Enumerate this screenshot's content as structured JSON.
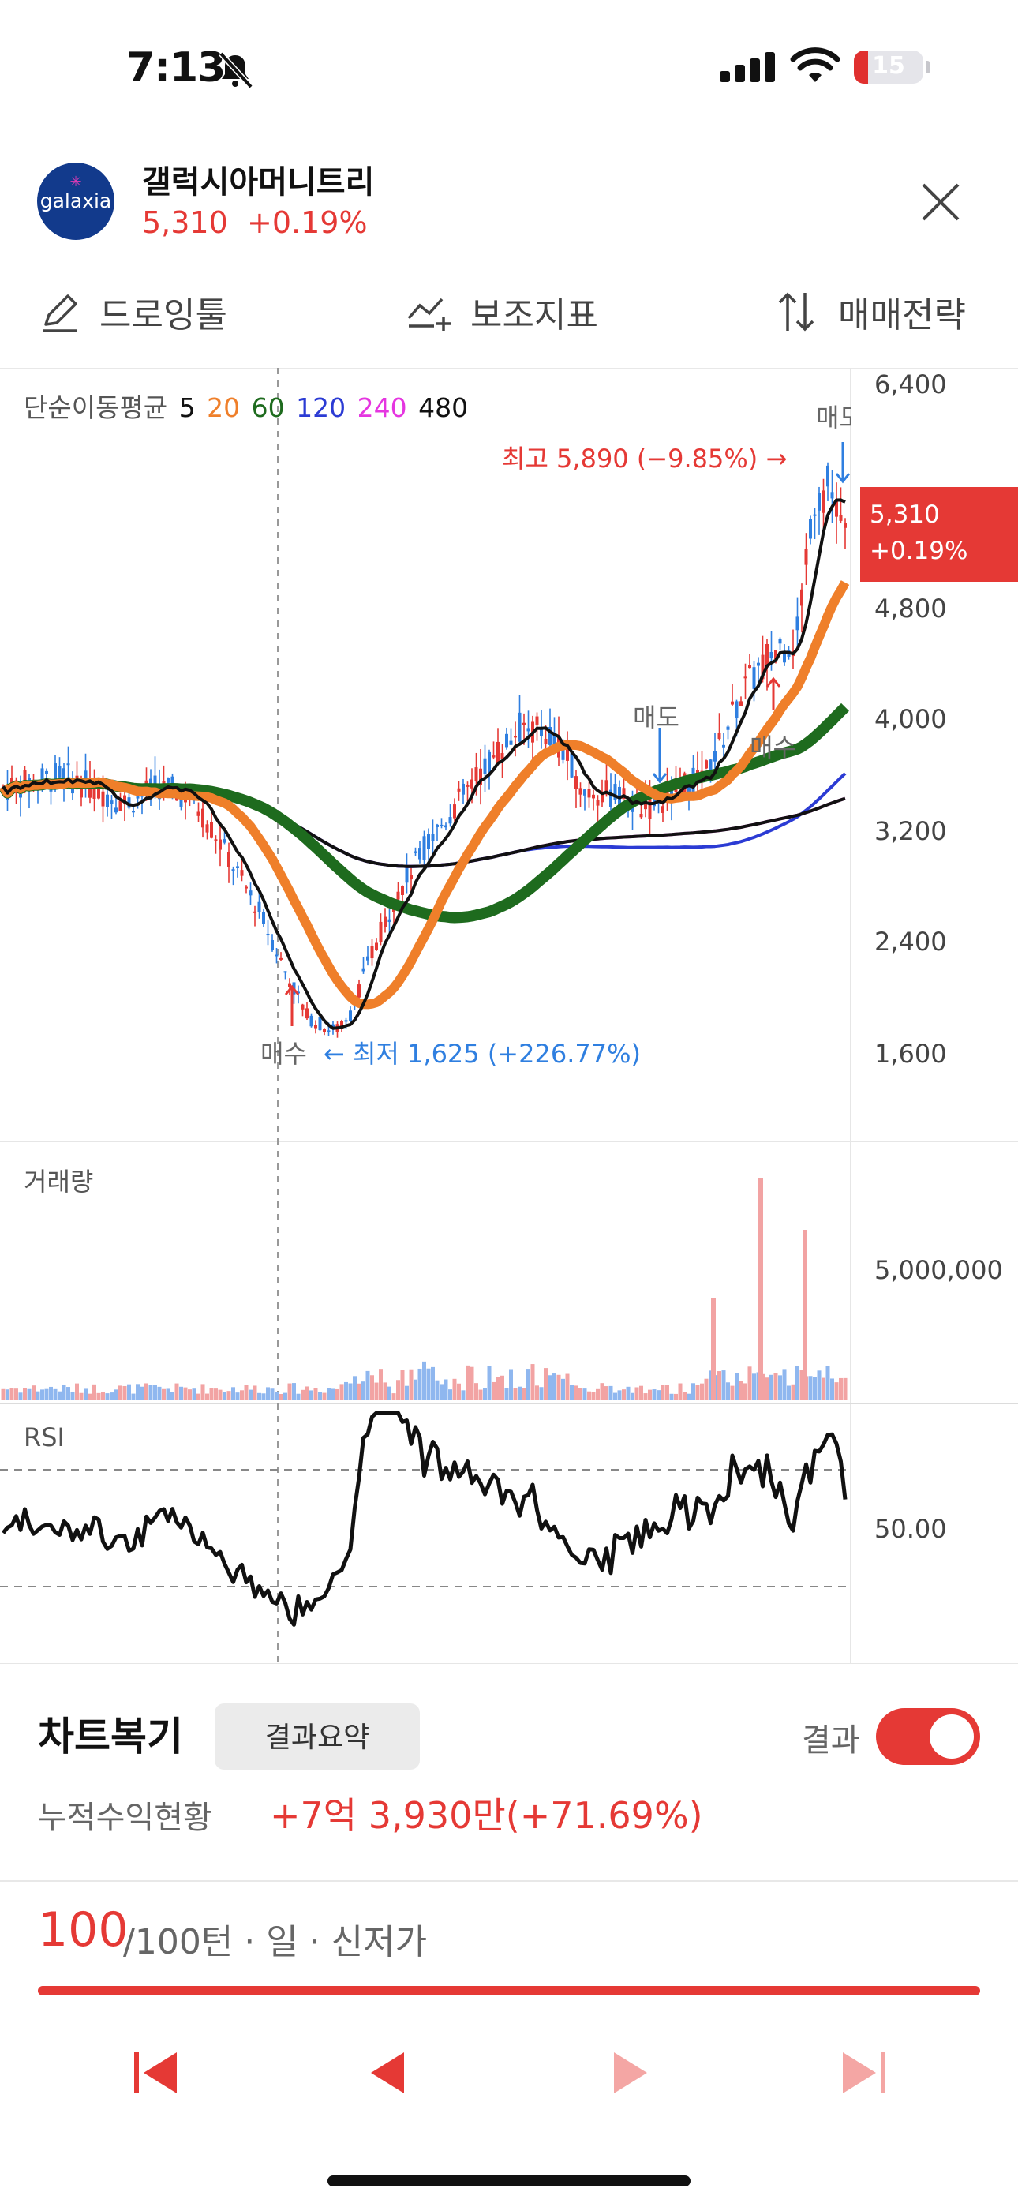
{
  "status_bar": {
    "time": "7:13",
    "battery": "15"
  },
  "header": {
    "logo_text": "galaxia",
    "name": "갤럭시아머니트리",
    "price": "5,310",
    "change": "+0.19%"
  },
  "toolbar": {
    "drawing": "드로잉툴",
    "indicators": "보조지표",
    "strategy": "매매전략"
  },
  "legend": {
    "title": "단순이동평균",
    "periods": [
      "5",
      "20",
      "60",
      "120",
      "240",
      "480"
    ],
    "colors": [
      "#111111",
      "#ef7f2a",
      "#1e6b1e",
      "#2b3bd4",
      "#e535e0",
      "#111111"
    ]
  },
  "price_axis": [
    "6,400",
    "4,800",
    "4,000",
    "3,200",
    "2,400",
    "1,600"
  ],
  "current_price_tag": {
    "price": "5,310",
    "change": "+0.19%"
  },
  "annotations": {
    "high": "최고 5,890 (−9.85%) →",
    "low": "← 최저 1,625 (+226.77%)",
    "buy": "매수",
    "sell": "매도"
  },
  "volume": {
    "label": "거래량",
    "axis_label": "5,000,000"
  },
  "rsi": {
    "label": "RSI",
    "axis_label": "50.00"
  },
  "panel": {
    "title": "차트복기",
    "summary_button": "결과요약",
    "toggle_label": "결과",
    "toggle_on": true,
    "profit_label": "누적수익현황",
    "profit_value": "+7억 3,930만(+71.69%)",
    "turn_current": "100",
    "turn_rest": "/100턴 · 일 · 신저가",
    "progress": 1.0
  },
  "colors": {
    "accent": "#e53935",
    "up": "#e53935",
    "down": "#2f7fe0"
  }
}
